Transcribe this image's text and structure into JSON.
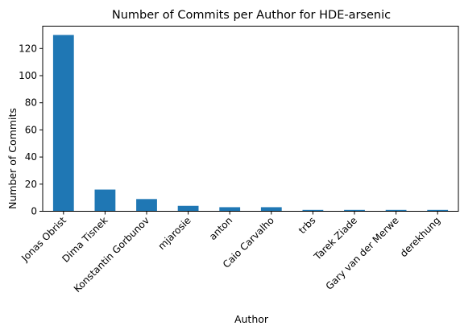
{
  "chart_data": {
    "type": "bar",
    "title": "Number of Commits per Author for HDE-arsenic",
    "xlabel": "Author",
    "ylabel": "Number of Commits",
    "categories": [
      "Jonas Obrist",
      "Dima Tisnek",
      "Konstantin Gorbunov",
      "mjarosie",
      "anton",
      "Caio Carvalho",
      "trbs",
      "Tarek Ziade",
      "Gary van der Merwe",
      "derekhung"
    ],
    "values": [
      130,
      16,
      9,
      4,
      3,
      3,
      1,
      1,
      1,
      1
    ],
    "ylim": [
      0,
      136.5
    ],
    "yticks": [
      0,
      20,
      40,
      60,
      80,
      100,
      120
    ],
    "grid": false,
    "bar_color": "#1f77b4"
  }
}
